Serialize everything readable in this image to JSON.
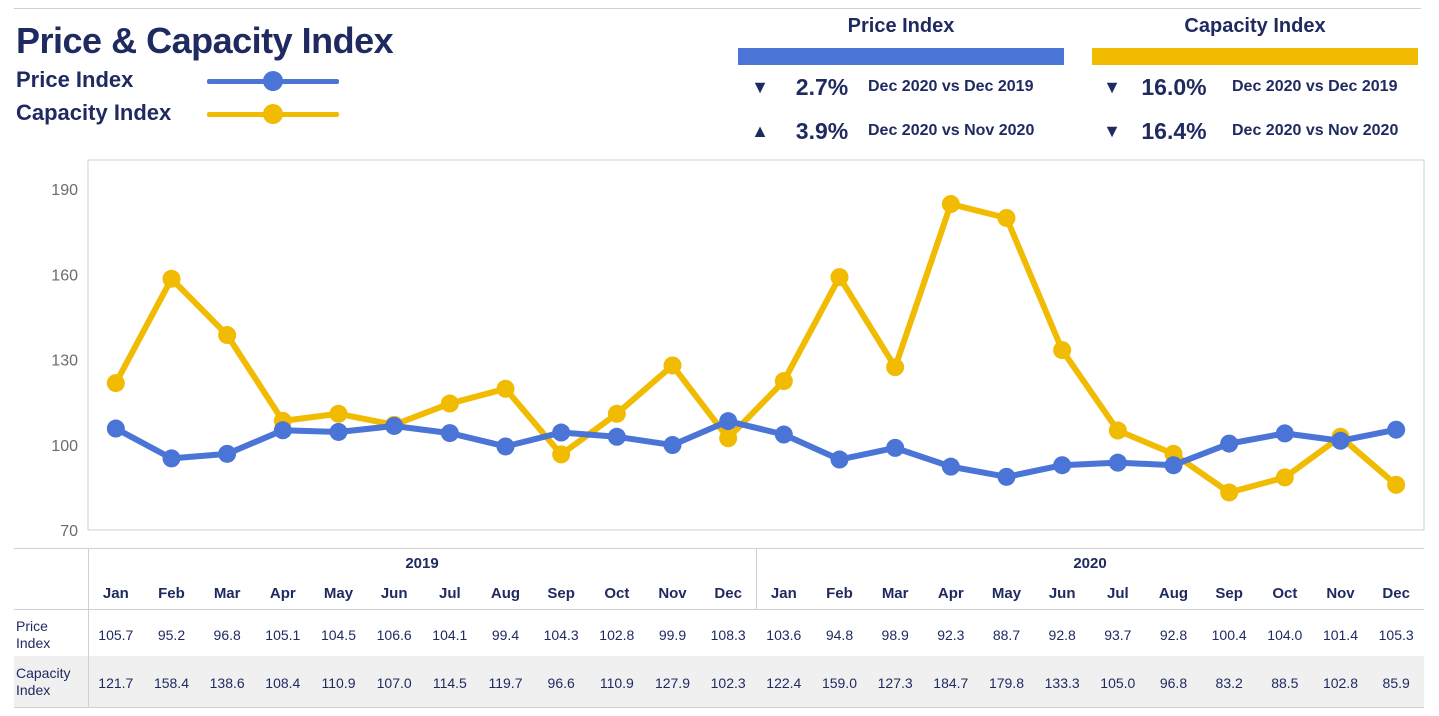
{
  "header": {
    "title": "Price & Capacity Index",
    "legend": [
      {
        "label": "Price Index",
        "color": "#4a74d6"
      },
      {
        "label": "Capacity Index",
        "color": "#f0bb00"
      }
    ]
  },
  "summary": [
    {
      "title": "Price Index",
      "color": "#4a74d6",
      "rows": [
        {
          "direction": "down",
          "icon": "▼",
          "pct": "2.7%",
          "compare": "Dec 2020 vs Dec 2019"
        },
        {
          "direction": "up",
          "icon": "▲",
          "pct": "3.9%",
          "compare": "Dec 2020 vs Nov 2020"
        }
      ]
    },
    {
      "title": "Capacity Index",
      "color": "#f0bb00",
      "rows": [
        {
          "direction": "down",
          "icon": "▼",
          "pct": "16.0%",
          "compare": "Dec 2020 vs Dec 2019"
        },
        {
          "direction": "down",
          "icon": "▼",
          "pct": "16.4%",
          "compare": "Dec 2020 vs Nov 2020"
        }
      ]
    }
  ],
  "chart_data": {
    "type": "line",
    "ylim": [
      70,
      190
    ],
    "yticks": [
      "70",
      "100",
      "130",
      "160",
      "190"
    ],
    "ytick_values": [
      70,
      100,
      130,
      160,
      190
    ],
    "years": [
      "2019",
      "2020"
    ],
    "months": [
      "Jan",
      "Feb",
      "Mar",
      "Apr",
      "May",
      "Jun",
      "Jul",
      "Aug",
      "Sep",
      "Oct",
      "Nov",
      "Dec"
    ],
    "series": [
      {
        "name": "Price Index",
        "row_label_1": "Price",
        "row_label_2": "Index",
        "color": "#4a74d6",
        "values": [
          105.7,
          95.2,
          96.8,
          105.1,
          104.5,
          106.6,
          104.1,
          99.4,
          104.3,
          102.8,
          99.9,
          108.3,
          103.6,
          94.8,
          98.9,
          92.3,
          88.7,
          92.8,
          93.7,
          92.8,
          100.4,
          104.0,
          101.4,
          105.3
        ],
        "labels": [
          "105.7",
          "95.2",
          "96.8",
          "105.1",
          "104.5",
          "106.6",
          "104.1",
          "99.4",
          "104.3",
          "102.8",
          "99.9",
          "108.3",
          "103.6",
          "94.8",
          "98.9",
          "92.3",
          "88.7",
          "92.8",
          "93.7",
          "92.8",
          "100.4",
          "104.0",
          "101.4",
          "105.3"
        ]
      },
      {
        "name": "Capacity Index",
        "row_label_1": "Capacity",
        "row_label_2": "Index",
        "color": "#f0bb00",
        "values": [
          121.7,
          158.4,
          138.6,
          108.4,
          110.9,
          107.0,
          114.5,
          119.7,
          96.6,
          110.9,
          127.9,
          102.3,
          122.4,
          159.0,
          127.3,
          184.7,
          179.8,
          133.3,
          105.0,
          96.8,
          83.2,
          88.5,
          102.8,
          85.9
        ],
        "labels": [
          "121.7",
          "158.4",
          "138.6",
          "108.4",
          "110.9",
          "107.0",
          "114.5",
          "119.7",
          "96.6",
          "110.9",
          "127.9",
          "102.3",
          "122.4",
          "159.0",
          "127.3",
          "184.7",
          "179.8",
          "133.3",
          "105.0",
          "96.8",
          "83.2",
          "88.5",
          "102.8",
          "85.9"
        ]
      }
    ]
  }
}
